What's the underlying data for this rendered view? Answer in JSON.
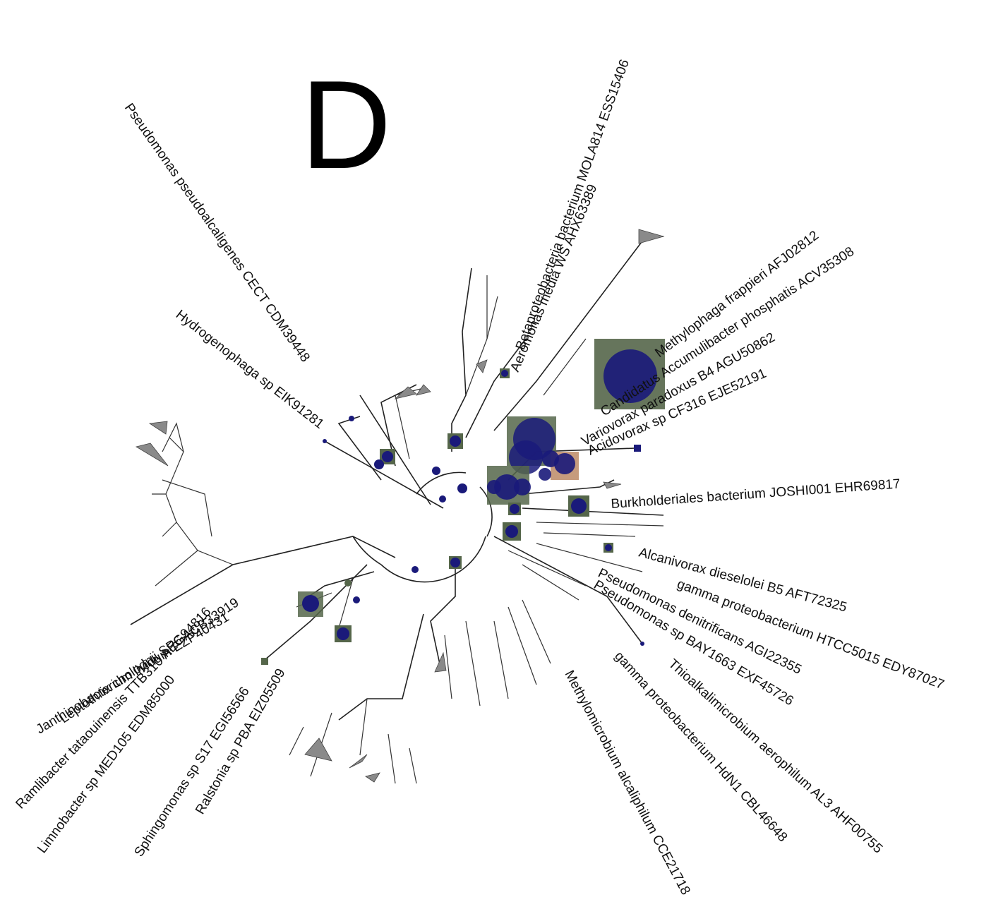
{
  "panel": {
    "letter": "D"
  },
  "colors": {
    "branch": "#222222",
    "node_circle": "#1a1a7a",
    "node_box": "#55664a",
    "node_box_alt": "#b8825c",
    "collapsed_clade": "#8a8a8a"
  },
  "leaf_labels": [
    "Pseudomonas pseudoalcaligenes CECT CDM39448",
    "Hydrogenophaga sp EIK91281",
    "Betaproteobacteria bacterium MOLA814 ESS15406",
    "Aeromonas media WS AHX63389",
    "Methylophaga frappieri AFJ02812",
    "Candidatus Accumulibacter phosphatis ACV35308",
    "Variovorax paradoxus B4 AGU50862",
    "Acidovorax sp CF316 EJE52191",
    "Burkholderiales bacterium JOSHI001 EHR69817",
    "Alcanivorax dieselolei B5 AFT72325",
    "gamma proteobacterium HTCC5015 EDY87027",
    "Pseudomonas denitrificans AGI22355",
    "Pseudomonas sp BAY1663 EXF45726",
    "Thioalkalimicrobium aerophilum AL3 AHF00755",
    "gamma proteobacterium HdN1 CBL46648",
    "Methylomicrobium alcaliphilum CCE21718",
    "Janthinobacterium lividum EZP40431",
    "Leptothrix cholodnii SP6 ACB33919",
    "Ramlibacter tataouinensis TTB310 AEG94816",
    "Limnobacter sp MED105 EDM85000",
    "Sphingomonas sp S17 EGI56566",
    "Ralstonia sp PBA EIZ05509"
  ]
}
